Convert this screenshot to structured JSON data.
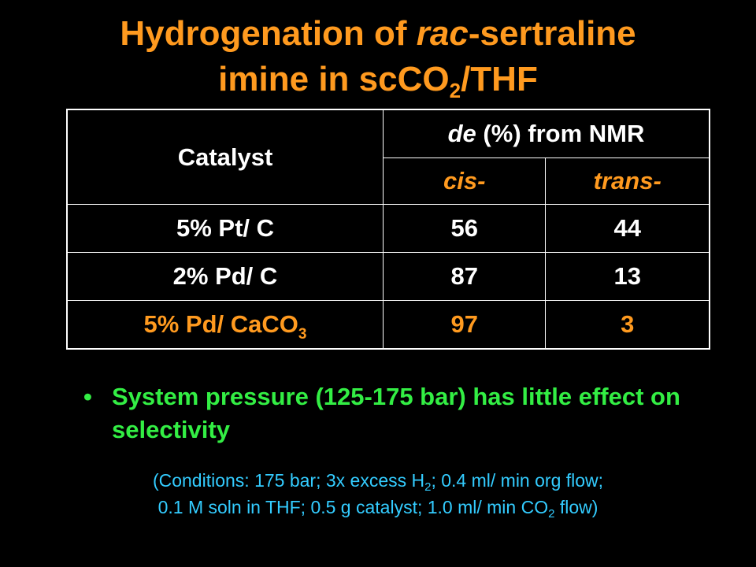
{
  "title": {
    "line1_prefix": "Hydrogenation of ",
    "line1_italic": "rac",
    "line1_suffix": "-sertraline",
    "line2_prefix": "imine in scCO",
    "line2_sub": "2",
    "line2_suffix": "/THF"
  },
  "table": {
    "header_catalyst": "Catalyst",
    "header_de_italic": "de",
    "header_de_rest": " (%) from NMR",
    "sub_cis": "cis-",
    "sub_trans": "trans-",
    "rows": [
      {
        "catalyst": "5% Pt/ C",
        "catalyst_sub": "",
        "cis": "56",
        "trans": "44"
      },
      {
        "catalyst": "2% Pd/ C",
        "catalyst_sub": "",
        "cis": "87",
        "trans": "13"
      },
      {
        "catalyst": "5% Pd/ CaCO",
        "catalyst_sub": "3",
        "cis": "97",
        "trans": "3"
      }
    ]
  },
  "bullet": {
    "marker": "•",
    "text": "System pressure (125-175 bar) has little effect on selectivity"
  },
  "note": {
    "l1_a": "(Conditions: 175 bar; 3x excess H",
    "l1_sub": "2",
    "l1_b": "; 0.4 ml/ min org flow;",
    "l2_a": "0.1 M soln in THF; 0.5 g catalyst; 1.0 ml/ min CO",
    "l2_sub": "2",
    "l2_b": " flow)"
  },
  "colors": {
    "background": "#000000",
    "title": "#ff9a1f",
    "table_text": "#ffffff",
    "highlight_row": "#ff9a1f",
    "bullet": "#33ee44",
    "note": "#33ccff"
  }
}
